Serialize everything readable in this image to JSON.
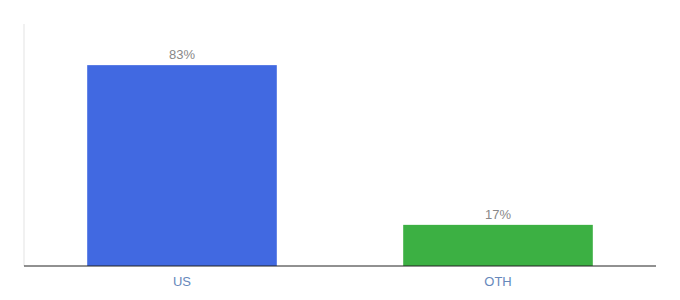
{
  "chart_data": {
    "type": "bar",
    "categories": [
      "US",
      "OTH"
    ],
    "values": [
      83,
      17
    ],
    "value_labels": [
      "83%",
      "17%"
    ],
    "colors": [
      "#4169E1",
      "#3CB043"
    ],
    "ylim": [
      0,
      100
    ],
    "data_labels": true,
    "tick_labels": "x",
    "grid": false
  }
}
